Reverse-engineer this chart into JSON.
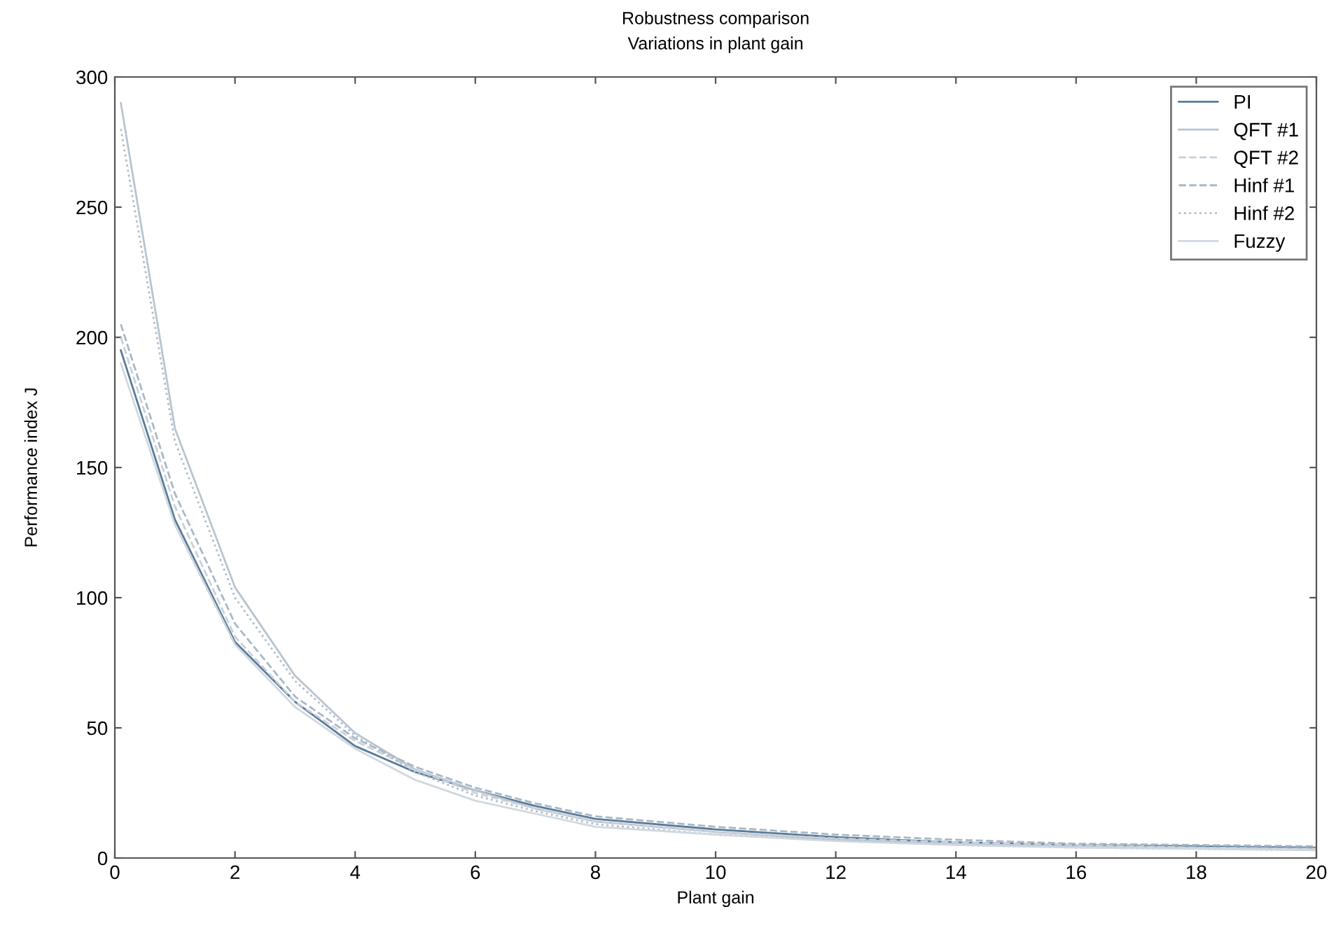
{
  "chart_data": {
    "type": "line",
    "title": "Robustness comparison",
    "subtitle": "Variations in plant gain",
    "xlabel": "Plant gain",
    "ylabel": "Performance index J",
    "xlim": [
      0,
      20
    ],
    "xticks": [
      0,
      2,
      4,
      6,
      8,
      10,
      12,
      14,
      16,
      18,
      20
    ],
    "ylim": [
      0,
      300
    ],
    "yticks": [
      0,
      50,
      100,
      150,
      200,
      250,
      300
    ],
    "grid": false,
    "legend": "top right",
    "marker": "none",
    "x": [
      0.1,
      1,
      2,
      3,
      4,
      5,
      6,
      7,
      8,
      10,
      12,
      14,
      16,
      18,
      20
    ],
    "series": [
      {
        "name": "PI",
        "color": "#5a7a9a",
        "line_style": "solid",
        "values": [
          195,
          130,
          83,
          60,
          43,
          33,
          26,
          20,
          15,
          11,
          8,
          6,
          5,
          4.5,
          4
        ]
      },
      {
        "name": "QFT #1",
        "color": "#b8c4d0",
        "line_style": "solid",
        "values": [
          290,
          165,
          104,
          70,
          48,
          34,
          26,
          19,
          14,
          10,
          7,
          5.5,
          4.5,
          4,
          3.5
        ]
      },
      {
        "name": "QFT #2",
        "color": "#c8d0d8",
        "line_style": "dashed",
        "values": [
          200,
          135,
          85,
          60,
          45,
          34,
          25,
          19,
          14,
          10,
          7.5,
          6,
          5,
          4,
          3.5
        ]
      },
      {
        "name": "Hinf #1",
        "color": "#a8b8c8",
        "line_style": "dashed",
        "values": [
          205,
          140,
          90,
          62,
          46,
          35,
          27,
          21,
          16,
          12,
          9,
          7,
          5.5,
          5,
          4.5
        ]
      },
      {
        "name": "Hinf #2",
        "color": "#b0bcc8",
        "line_style": "dotted",
        "values": [
          280,
          160,
          100,
          68,
          47,
          33,
          24,
          18,
          13,
          9,
          7,
          5,
          4,
          3.5,
          3
        ]
      },
      {
        "name": "Fuzzy",
        "color": "#d0d8e0",
        "line_style": "solid",
        "values": [
          190,
          128,
          82,
          58,
          42,
          30,
          22,
          17,
          12,
          9,
          6.5,
          5,
          4,
          3.5,
          3
        ]
      }
    ]
  }
}
